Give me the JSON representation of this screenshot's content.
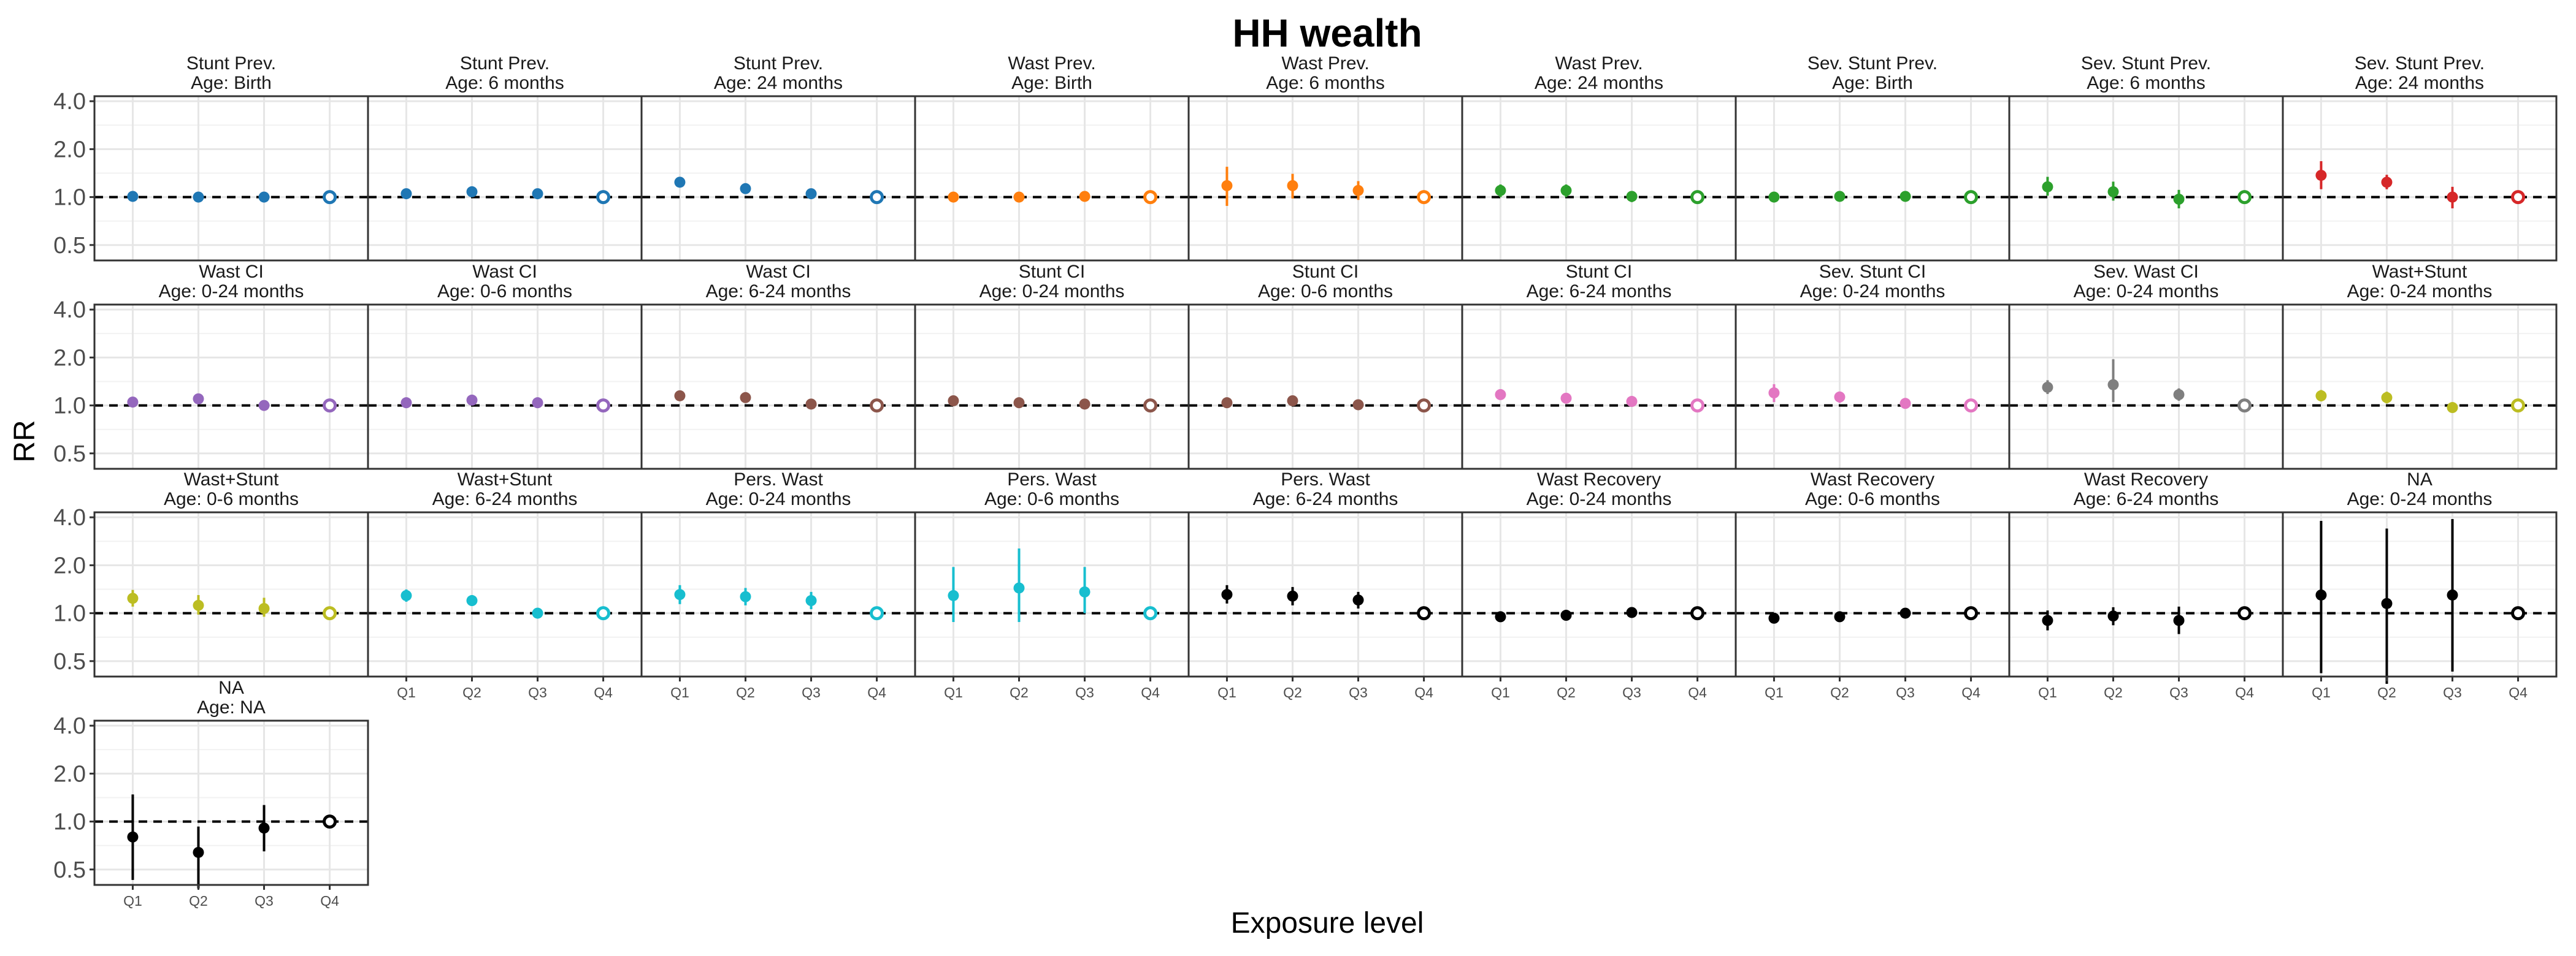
{
  "chart_data": {
    "type": "scatter",
    "title": "HH wealth",
    "xlabel": "Exposure level",
    "ylabel": "RR",
    "y_scale": "log",
    "ylim": [
      0.4,
      4.3
    ],
    "y_ticks": [
      0.5,
      1.0,
      2.0,
      4.0
    ],
    "y_tick_labels": [
      "0.5",
      "1.0",
      "2.0",
      "4.0"
    ],
    "reference_line": 1.0,
    "reference_line_style": "dashed",
    "categories": [
      "Q1",
      "Q2",
      "Q3",
      "Q4"
    ],
    "reference_level": "Q4",
    "grid": true,
    "series": [
      {
        "title": "Stunt Prev.",
        "subtitle": "Age: Birth",
        "color": "#1F77B4",
        "points": [
          {
            "x": "Q1",
            "y": 1.01,
            "lo": 0.99,
            "hi": 1.03
          },
          {
            "x": "Q2",
            "y": 1.0,
            "lo": 0.98,
            "hi": 1.02
          },
          {
            "x": "Q3",
            "y": 1.0,
            "lo": 0.98,
            "hi": 1.02
          },
          {
            "x": "Q4",
            "y": 1.0,
            "lo": 1.0,
            "hi": 1.0
          }
        ]
      },
      {
        "title": "Stunt Prev.",
        "subtitle": "Age: 6 months",
        "color": "#1F77B4",
        "points": [
          {
            "x": "Q1",
            "y": 1.05,
            "lo": 1.02,
            "hi": 1.08
          },
          {
            "x": "Q2",
            "y": 1.08,
            "lo": 1.05,
            "hi": 1.11
          },
          {
            "x": "Q3",
            "y": 1.05,
            "lo": 1.02,
            "hi": 1.08
          },
          {
            "x": "Q4",
            "y": 1.0,
            "lo": 1.0,
            "hi": 1.0
          }
        ]
      },
      {
        "title": "Stunt Prev.",
        "subtitle": "Age: 24 months",
        "color": "#1F77B4",
        "points": [
          {
            "x": "Q1",
            "y": 1.24,
            "lo": 1.2,
            "hi": 1.28
          },
          {
            "x": "Q2",
            "y": 1.13,
            "lo": 1.1,
            "hi": 1.17
          },
          {
            "x": "Q3",
            "y": 1.05,
            "lo": 1.02,
            "hi": 1.08
          },
          {
            "x": "Q4",
            "y": 1.0,
            "lo": 1.0,
            "hi": 1.0
          }
        ]
      },
      {
        "title": "Wast Prev.",
        "subtitle": "Age: Birth",
        "color": "#FF7F0E",
        "points": [
          {
            "x": "Q1",
            "y": 1.0,
            "lo": 0.93,
            "hi": 1.07
          },
          {
            "x": "Q2",
            "y": 1.0,
            "lo": 0.96,
            "hi": 1.04
          },
          {
            "x": "Q3",
            "y": 1.01,
            "lo": 0.97,
            "hi": 1.05
          },
          {
            "x": "Q4",
            "y": 1.0,
            "lo": 1.0,
            "hi": 1.0
          }
        ]
      },
      {
        "title": "Wast Prev.",
        "subtitle": "Age: 6 months",
        "color": "#FF7F0E",
        "points": [
          {
            "x": "Q1",
            "y": 1.18,
            "lo": 0.88,
            "hi": 1.55
          },
          {
            "x": "Q2",
            "y": 1.18,
            "lo": 0.98,
            "hi": 1.4
          },
          {
            "x": "Q3",
            "y": 1.1,
            "lo": 0.96,
            "hi": 1.26
          },
          {
            "x": "Q4",
            "y": 1.0,
            "lo": 1.0,
            "hi": 1.0
          }
        ]
      },
      {
        "title": "Wast Prev.",
        "subtitle": "Age: 24 months",
        "color": "#2CA02C",
        "points": [
          {
            "x": "Q1",
            "y": 1.1,
            "lo": 1.0,
            "hi": 1.2
          },
          {
            "x": "Q2",
            "y": 1.1,
            "lo": 1.0,
            "hi": 1.2
          },
          {
            "x": "Q3",
            "y": 1.01,
            "lo": 0.93,
            "hi": 1.09
          },
          {
            "x": "Q4",
            "y": 1.0,
            "lo": 1.0,
            "hi": 1.0
          }
        ]
      },
      {
        "title": "Sev. Stunt Prev.",
        "subtitle": "Age: Birth",
        "color": "#2CA02C",
        "points": [
          {
            "x": "Q1",
            "y": 1.0,
            "lo": 0.97,
            "hi": 1.04
          },
          {
            "x": "Q2",
            "y": 1.01,
            "lo": 0.98,
            "hi": 1.05
          },
          {
            "x": "Q3",
            "y": 1.01,
            "lo": 0.97,
            "hi": 1.05
          },
          {
            "x": "Q4",
            "y": 1.0,
            "lo": 1.0,
            "hi": 1.0
          }
        ]
      },
      {
        "title": "Sev. Stunt Prev.",
        "subtitle": "Age: 6 months",
        "color": "#2CA02C",
        "points": [
          {
            "x": "Q1",
            "y": 1.16,
            "lo": 1.02,
            "hi": 1.34
          },
          {
            "x": "Q2",
            "y": 1.08,
            "lo": 0.95,
            "hi": 1.25
          },
          {
            "x": "Q3",
            "y": 0.97,
            "lo": 0.85,
            "hi": 1.11
          },
          {
            "x": "Q4",
            "y": 1.0,
            "lo": 1.0,
            "hi": 1.0
          }
        ]
      },
      {
        "title": "Sev. Stunt Prev.",
        "subtitle": "Age: 24 months",
        "color": "#D62728",
        "points": [
          {
            "x": "Q1",
            "y": 1.37,
            "lo": 1.12,
            "hi": 1.68
          },
          {
            "x": "Q2",
            "y": 1.24,
            "lo": 1.12,
            "hi": 1.38
          },
          {
            "x": "Q3",
            "y": 1.0,
            "lo": 0.85,
            "hi": 1.16
          },
          {
            "x": "Q4",
            "y": 1.0,
            "lo": 1.0,
            "hi": 1.0
          }
        ]
      },
      {
        "title": "Wast CI",
        "subtitle": "Age: 0-24 months",
        "color": "#9467BD",
        "points": [
          {
            "x": "Q1",
            "y": 1.05,
            "lo": 1.02,
            "hi": 1.08
          },
          {
            "x": "Q2",
            "y": 1.1,
            "lo": 1.06,
            "hi": 1.14
          },
          {
            "x": "Q3",
            "y": 1.0,
            "lo": 0.97,
            "hi": 1.03
          },
          {
            "x": "Q4",
            "y": 1.0,
            "lo": 1.0,
            "hi": 1.0
          }
        ]
      },
      {
        "title": "Wast CI",
        "subtitle": "Age: 0-6 months",
        "color": "#9467BD",
        "points": [
          {
            "x": "Q1",
            "y": 1.04,
            "lo": 1.0,
            "hi": 1.08
          },
          {
            "x": "Q2",
            "y": 1.08,
            "lo": 1.02,
            "hi": 1.14
          },
          {
            "x": "Q3",
            "y": 1.04,
            "lo": 1.0,
            "hi": 1.08
          },
          {
            "x": "Q4",
            "y": 1.0,
            "lo": 1.0,
            "hi": 1.0
          }
        ]
      },
      {
        "title": "Wast CI",
        "subtitle": "Age: 6-24 months",
        "color": "#8C564B",
        "points": [
          {
            "x": "Q1",
            "y": 1.15,
            "lo": 1.11,
            "hi": 1.19
          },
          {
            "x": "Q2",
            "y": 1.12,
            "lo": 1.08,
            "hi": 1.16
          },
          {
            "x": "Q3",
            "y": 1.02,
            "lo": 0.99,
            "hi": 1.05
          },
          {
            "x": "Q4",
            "y": 1.0,
            "lo": 1.0,
            "hi": 1.0
          }
        ]
      },
      {
        "title": "Stunt CI",
        "subtitle": "Age: 0-24 months",
        "color": "#8C564B",
        "points": [
          {
            "x": "Q1",
            "y": 1.07,
            "lo": 1.04,
            "hi": 1.1
          },
          {
            "x": "Q2",
            "y": 1.04,
            "lo": 1.01,
            "hi": 1.07
          },
          {
            "x": "Q3",
            "y": 1.02,
            "lo": 0.99,
            "hi": 1.05
          },
          {
            "x": "Q4",
            "y": 1.0,
            "lo": 1.0,
            "hi": 1.0
          }
        ]
      },
      {
        "title": "Stunt CI",
        "subtitle": "Age: 0-6 months",
        "color": "#8C564B",
        "points": [
          {
            "x": "Q1",
            "y": 1.04,
            "lo": 0.97,
            "hi": 1.1
          },
          {
            "x": "Q2",
            "y": 1.07,
            "lo": 1.02,
            "hi": 1.12
          },
          {
            "x": "Q3",
            "y": 1.01,
            "lo": 0.97,
            "hi": 1.05
          },
          {
            "x": "Q4",
            "y": 1.0,
            "lo": 1.0,
            "hi": 1.0
          }
        ]
      },
      {
        "title": "Stunt CI",
        "subtitle": "Age: 6-24 months",
        "color": "#E377C2",
        "points": [
          {
            "x": "Q1",
            "y": 1.17,
            "lo": 1.11,
            "hi": 1.23
          },
          {
            "x": "Q2",
            "y": 1.11,
            "lo": 1.06,
            "hi": 1.17
          },
          {
            "x": "Q3",
            "y": 1.06,
            "lo": 1.01,
            "hi": 1.11
          },
          {
            "x": "Q4",
            "y": 1.0,
            "lo": 1.0,
            "hi": 1.0
          }
        ]
      },
      {
        "title": "Sev. Stunt CI",
        "subtitle": "Age: 0-24 months",
        "color": "#E377C2",
        "points": [
          {
            "x": "Q1",
            "y": 1.2,
            "lo": 1.05,
            "hi": 1.36
          },
          {
            "x": "Q2",
            "y": 1.13,
            "lo": 1.04,
            "hi": 1.22
          },
          {
            "x": "Q3",
            "y": 1.03,
            "lo": 0.97,
            "hi": 1.09
          },
          {
            "x": "Q4",
            "y": 1.0,
            "lo": 1.0,
            "hi": 1.0
          }
        ]
      },
      {
        "title": "Sev. Wast CI",
        "subtitle": "Age: 0-24 months",
        "color": "#7F7F7F",
        "points": [
          {
            "x": "Q1",
            "y": 1.3,
            "lo": 1.18,
            "hi": 1.44
          },
          {
            "x": "Q2",
            "y": 1.35,
            "lo": 1.05,
            "hi": 1.95
          },
          {
            "x": "Q3",
            "y": 1.17,
            "lo": 1.07,
            "hi": 1.28
          },
          {
            "x": "Q4",
            "y": 1.0,
            "lo": 1.0,
            "hi": 1.0
          }
        ]
      },
      {
        "title": "Wast+Stunt",
        "subtitle": "Age: 0-24 months",
        "color": "#BCBD22",
        "points": [
          {
            "x": "Q1",
            "y": 1.15,
            "lo": 1.06,
            "hi": 1.25
          },
          {
            "x": "Q2",
            "y": 1.12,
            "lo": 1.03,
            "hi": 1.22
          },
          {
            "x": "Q3",
            "y": 0.97,
            "lo": 0.92,
            "hi": 1.03
          },
          {
            "x": "Q4",
            "y": 1.0,
            "lo": 1.0,
            "hi": 1.0
          }
        ]
      },
      {
        "title": "Wast+Stunt",
        "subtitle": "Age: 0-6 months",
        "color": "#BCBD22",
        "points": [
          {
            "x": "Q1",
            "y": 1.24,
            "lo": 1.1,
            "hi": 1.4
          },
          {
            "x": "Q2",
            "y": 1.12,
            "lo": 0.98,
            "hi": 1.3
          },
          {
            "x": "Q3",
            "y": 1.07,
            "lo": 0.95,
            "hi": 1.25
          },
          {
            "x": "Q4",
            "y": 1.0,
            "lo": 1.0,
            "hi": 1.0
          }
        ]
      },
      {
        "title": "Wast+Stunt",
        "subtitle": "Age: 6-24 months",
        "color": "#17BECF",
        "points": [
          {
            "x": "Q1",
            "y": 1.29,
            "lo": 1.18,
            "hi": 1.41
          },
          {
            "x": "Q2",
            "y": 1.2,
            "lo": 1.11,
            "hi": 1.3
          },
          {
            "x": "Q3",
            "y": 1.0,
            "lo": 0.93,
            "hi": 1.08
          },
          {
            "x": "Q4",
            "y": 1.0,
            "lo": 1.0,
            "hi": 1.0
          }
        ]
      },
      {
        "title": "Pers. Wast",
        "subtitle": "Age: 0-24 months",
        "color": "#17BECF",
        "points": [
          {
            "x": "Q1",
            "y": 1.31,
            "lo": 1.14,
            "hi": 1.5
          },
          {
            "x": "Q2",
            "y": 1.27,
            "lo": 1.12,
            "hi": 1.44
          },
          {
            "x": "Q3",
            "y": 1.2,
            "lo": 1.06,
            "hi": 1.36
          },
          {
            "x": "Q4",
            "y": 1.0,
            "lo": 1.0,
            "hi": 1.0
          }
        ]
      },
      {
        "title": "Pers. Wast",
        "subtitle": "Age: 0-6 months",
        "color": "#17BECF",
        "points": [
          {
            "x": "Q1",
            "y": 1.29,
            "lo": 0.88,
            "hi": 1.95
          },
          {
            "x": "Q2",
            "y": 1.44,
            "lo": 0.88,
            "hi": 2.55
          },
          {
            "x": "Q3",
            "y": 1.36,
            "lo": 1.0,
            "hi": 1.95
          },
          {
            "x": "Q4",
            "y": 1.0,
            "lo": 1.0,
            "hi": 1.0
          }
        ]
      },
      {
        "title": "Pers. Wast",
        "subtitle": "Age: 6-24 months",
        "color": "#000000",
        "points": [
          {
            "x": "Q1",
            "y": 1.31,
            "lo": 1.15,
            "hi": 1.5
          },
          {
            "x": "Q2",
            "y": 1.28,
            "lo": 1.12,
            "hi": 1.46
          },
          {
            "x": "Q3",
            "y": 1.21,
            "lo": 1.07,
            "hi": 1.36
          },
          {
            "x": "Q4",
            "y": 1.0,
            "lo": 1.0,
            "hi": 1.0
          }
        ]
      },
      {
        "title": "Wast Recovery",
        "subtitle": "Age: 0-24 months",
        "color": "#000000",
        "points": [
          {
            "x": "Q1",
            "y": 0.95,
            "lo": 0.92,
            "hi": 0.98
          },
          {
            "x": "Q2",
            "y": 0.97,
            "lo": 0.94,
            "hi": 1.0
          },
          {
            "x": "Q3",
            "y": 1.01,
            "lo": 0.98,
            "hi": 1.04
          },
          {
            "x": "Q4",
            "y": 1.0,
            "lo": 1.0,
            "hi": 1.0
          }
        ]
      },
      {
        "title": "Wast Recovery",
        "subtitle": "Age: 0-6 months",
        "color": "#000000",
        "points": [
          {
            "x": "Q1",
            "y": 0.93,
            "lo": 0.9,
            "hi": 0.96
          },
          {
            "x": "Q2",
            "y": 0.95,
            "lo": 0.92,
            "hi": 0.98
          },
          {
            "x": "Q3",
            "y": 1.0,
            "lo": 0.97,
            "hi": 1.03
          },
          {
            "x": "Q4",
            "y": 1.0,
            "lo": 1.0,
            "hi": 1.0
          }
        ]
      },
      {
        "title": "Wast Recovery",
        "subtitle": "Age: 6-24 months",
        "color": "#000000",
        "points": [
          {
            "x": "Q1",
            "y": 0.9,
            "lo": 0.78,
            "hi": 1.04
          },
          {
            "x": "Q2",
            "y": 0.96,
            "lo": 0.84,
            "hi": 1.09
          },
          {
            "x": "Q3",
            "y": 0.9,
            "lo": 0.74,
            "hi": 1.1
          },
          {
            "x": "Q4",
            "y": 1.0,
            "lo": 1.0,
            "hi": 1.0
          }
        ]
      },
      {
        "title": "NA",
        "subtitle": "Age: 0-24 months",
        "color": "#000000",
        "points": [
          {
            "x": "Q1",
            "y": 1.3,
            "lo": 0.42,
            "hi": 3.8
          },
          {
            "x": "Q2",
            "y": 1.15,
            "lo": 0.36,
            "hi": 3.4
          },
          {
            "x": "Q3",
            "y": 1.3,
            "lo": 0.43,
            "hi": 3.9
          },
          {
            "x": "Q4",
            "y": 1.0,
            "lo": 1.0,
            "hi": 1.0
          }
        ]
      },
      {
        "title": "NA",
        "subtitle": "Age: NA",
        "color": "#000000",
        "points": [
          {
            "x": "Q1",
            "y": 0.8,
            "lo": 0.43,
            "hi": 1.48
          },
          {
            "x": "Q2",
            "y": 0.64,
            "lo": 0.38,
            "hi": 0.93
          },
          {
            "x": "Q3",
            "y": 0.91,
            "lo": 0.65,
            "hi": 1.27
          },
          {
            "x": "Q4",
            "y": 1.0,
            "lo": 1.0,
            "hi": 1.0
          }
        ]
      }
    ]
  }
}
